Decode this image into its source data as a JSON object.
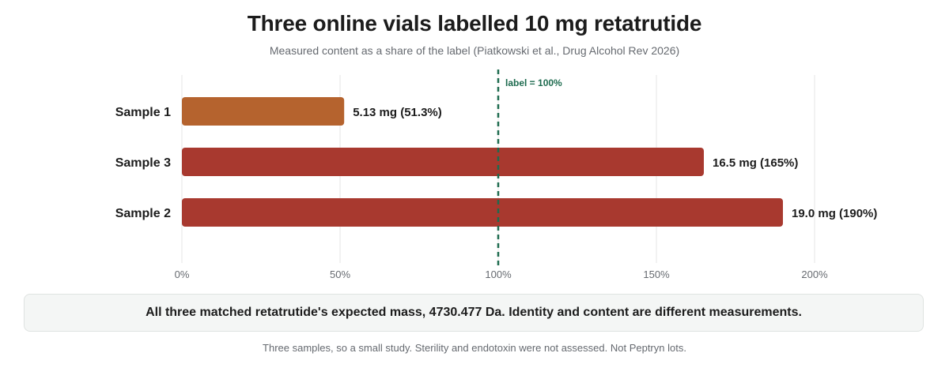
{
  "header": {
    "title": "Three online vials labelled 10 mg retatrutide",
    "subtitle": "Measured content as a share of the label (Piatkowski et al., Drug Alcohol Rev 2026)"
  },
  "chart_data": {
    "type": "bar",
    "orientation": "horizontal",
    "categories": [
      "Sample 1",
      "Sample 3",
      "Sample 2"
    ],
    "values": [
      51.3,
      165,
      190
    ],
    "data_labels": [
      "5.13 mg (51.3%)",
      "16.5 mg (165%)",
      "19.0 mg (190%)"
    ],
    "bar_colors": [
      "#b5632e",
      "#a8392f",
      "#a8392f"
    ],
    "xlim": [
      0,
      200
    ],
    "x_ticks": [
      0,
      50,
      100,
      150,
      200
    ],
    "x_tick_labels": [
      "0%",
      "50%",
      "100%",
      "150%",
      "200%"
    ],
    "grid": true,
    "reference_line": {
      "value": 100,
      "label": "label = 100%",
      "color": "#1e6b4f",
      "style": "dashed"
    }
  },
  "callout": {
    "text": "All three matched retatrutide's expected mass, 4730.477 Da. Identity and content are different measurements."
  },
  "footnote": {
    "text": "Three samples, so a small study. Sterility and endotoxin were not assessed. Not Peptryn lots."
  }
}
